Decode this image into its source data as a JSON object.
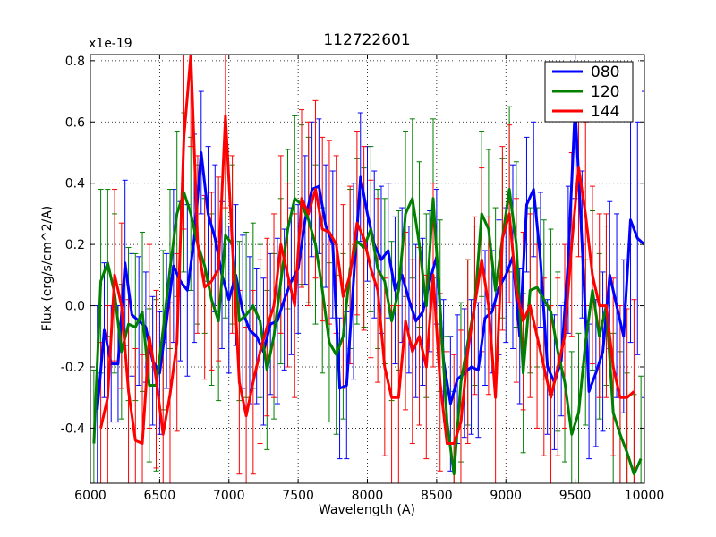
{
  "chart_data": {
    "type": "line",
    "title": "112722601",
    "xlabel": "Wavelength (A)",
    "ylabel": "Flux (erg/s/cm^2/A)",
    "offset_label": "x1e-19",
    "xlim": [
      6000,
      10000
    ],
    "ylim": [
      -0.58,
      0.82
    ],
    "xticks": [
      6000,
      6500,
      7000,
      7500,
      8000,
      8500,
      9000,
      9500,
      10000
    ],
    "yticks": [
      -0.4,
      -0.2,
      0.0,
      0.2,
      0.4,
      0.6,
      0.8
    ],
    "ytick_labels": [
      "-0.4",
      "-0.2",
      "0.0",
      "0.2",
      "0.4",
      "0.6",
      "0.8"
    ],
    "grid": true,
    "legend_position": "top-right",
    "series": [
      {
        "name": "080",
        "color": "#0000ff",
        "x": [
          6050,
          6100,
          6150,
          6200,
          6250,
          6300,
          6350,
          6400,
          6450,
          6500,
          6550,
          6600,
          6650,
          6700,
          6750,
          6800,
          6850,
          6900,
          6950,
          7000,
          7050,
          7100,
          7150,
          7200,
          7250,
          7300,
          7350,
          7400,
          7450,
          7500,
          7550,
          7600,
          7650,
          7700,
          7750,
          7800,
          7850,
          7900,
          7950,
          8000,
          8050,
          8100,
          8150,
          8200,
          8250,
          8300,
          8350,
          8400,
          8450,
          8500,
          8550,
          8600,
          8650,
          8700,
          8750,
          8800,
          8850,
          8900,
          8950,
          9000,
          9050,
          9100,
          9150,
          9200,
          9250,
          9300,
          9350,
          9400,
          9450,
          9500,
          9550,
          9600,
          9650,
          9700,
          9750,
          9800,
          9850,
          9900,
          9950,
          10000
        ],
        "values": [
          -0.34,
          -0.08,
          -0.19,
          -0.19,
          0.14,
          -0.03,
          -0.05,
          -0.07,
          -0.18,
          -0.22,
          -0.05,
          0.13,
          0.08,
          0.05,
          0.22,
          0.5,
          0.3,
          0.22,
          0.1,
          0.02,
          0.1,
          -0.02,
          -0.08,
          -0.1,
          -0.15,
          -0.06,
          -0.05,
          0.02,
          0.08,
          0.12,
          0.28,
          0.38,
          0.39,
          0.26,
          0.2,
          -0.27,
          -0.26,
          0.08,
          0.42,
          0.3,
          0.2,
          0.15,
          0.18,
          0.05,
          0.1,
          0.02,
          -0.05,
          -0.02,
          0.08,
          0.16,
          -0.18,
          -0.32,
          -0.24,
          -0.22,
          -0.2,
          -0.21,
          -0.04,
          -0.02,
          0.06,
          0.1,
          0.16,
          -0.1,
          0.33,
          0.38,
          0.15,
          -0.2,
          -0.25,
          -0.18,
          0.15,
          0.65,
          0.2,
          -0.28,
          -0.22,
          -0.15,
          0.1,
          0.0,
          -0.1,
          0.28,
          0.22,
          0.2
        ],
        "errors": [
          0.34,
          0.22,
          0.19,
          0.19,
          0.27,
          0.2,
          0.21,
          0.18,
          0.21,
          0.2,
          0.22,
          0.25,
          0.26,
          0.28,
          0.34,
          0.2,
          0.22,
          0.24,
          0.24,
          0.24,
          0.23,
          0.25,
          0.24,
          0.22,
          0.24,
          0.23,
          0.27,
          0.23,
          0.24,
          0.21,
          0.21,
          0.22,
          0.22,
          0.2,
          0.24,
          0.23,
          0.24,
          0.32,
          0.21,
          0.22,
          0.24,
          0.24,
          0.22,
          0.24,
          0.22,
          0.24,
          0.25,
          0.24,
          0.23,
          0.22,
          0.2,
          0.22,
          0.21,
          0.21,
          0.22,
          0.22,
          0.22,
          0.2,
          0.22,
          0.22,
          0.3,
          0.22,
          0.22,
          0.22,
          0.22,
          0.22,
          0.22,
          0.18,
          0.24,
          0.3,
          0.24,
          0.22,
          0.24,
          0.26,
          0.24,
          0.3,
          0.25,
          0.4,
          0.38,
          0.5
        ]
      },
      {
        "name": "120",
        "color": "#007f00",
        "x": [
          6025,
          6075,
          6125,
          6175,
          6225,
          6275,
          6325,
          6375,
          6425,
          6475,
          6525,
          6575,
          6625,
          6675,
          6725,
          6775,
          6825,
          6875,
          6925,
          6975,
          7025,
          7075,
          7125,
          7175,
          7225,
          7275,
          7325,
          7375,
          7425,
          7475,
          7525,
          7575,
          7625,
          7675,
          7725,
          7775,
          7825,
          7875,
          7925,
          7975,
          8025,
          8075,
          8125,
          8175,
          8225,
          8275,
          8325,
          8375,
          8425,
          8475,
          8525,
          8575,
          8625,
          8675,
          8725,
          8775,
          8825,
          8875,
          8925,
          8975,
          9025,
          9075,
          9125,
          9175,
          9225,
          9275,
          9325,
          9375,
          9425,
          9475,
          9525,
          9575,
          9625,
          9675,
          9725,
          9775,
          9825,
          9875,
          9925,
          9975
        ],
        "values": [
          -0.45,
          0.08,
          0.14,
          0.04,
          -0.15,
          -0.06,
          -0.07,
          -0.02,
          -0.26,
          -0.26,
          -0.08,
          0.12,
          0.3,
          0.37,
          0.3,
          0.2,
          0.13,
          0.02,
          -0.05,
          0.23,
          0.2,
          -0.05,
          -0.03,
          0.0,
          -0.05,
          -0.21,
          -0.1,
          0.08,
          0.25,
          0.35,
          0.33,
          0.28,
          0.2,
          0.05,
          -0.12,
          -0.16,
          -0.1,
          0.12,
          0.21,
          0.19,
          0.25,
          0.12,
          0.08,
          -0.05,
          0.05,
          0.3,
          0.35,
          0.2,
          0.0,
          0.35,
          0.0,
          -0.38,
          -0.55,
          -0.25,
          -0.12,
          0.0,
          0.3,
          0.25,
          0.05,
          0.22,
          0.38,
          0.2,
          -0.22,
          0.05,
          0.06,
          0.02,
          -0.02,
          -0.15,
          -0.25,
          -0.42,
          -0.35,
          -0.12,
          0.05,
          -0.1,
          0.0,
          -0.35,
          -0.42,
          -0.48,
          -0.55,
          -0.5
        ],
        "errors": [
          0.24,
          0.3,
          0.24,
          0.26,
          0.22,
          0.25,
          0.24,
          0.26,
          0.25,
          0.28,
          0.26,
          0.26,
          0.27,
          0.26,
          0.25,
          0.26,
          0.22,
          0.28,
          0.26,
          0.27,
          0.26,
          0.26,
          0.27,
          0.27,
          0.25,
          0.26,
          0.27,
          0.27,
          0.26,
          0.27,
          0.26,
          0.27,
          0.26,
          0.27,
          0.26,
          0.26,
          0.27,
          0.26,
          0.27,
          0.26,
          0.27,
          0.26,
          0.27,
          0.26,
          0.26,
          0.27,
          0.26,
          0.27,
          0.3,
          0.26,
          0.28,
          0.28,
          0.27,
          0.26,
          0.27,
          0.26,
          0.27,
          0.26,
          0.27,
          0.26,
          0.27,
          0.27,
          0.26,
          0.27,
          0.26,
          0.26,
          0.27,
          0.26,
          0.26,
          0.27,
          0.26,
          0.27,
          0.26,
          0.27,
          0.26,
          0.26,
          0.27,
          0.26,
          0.26,
          0.27
        ]
      },
      {
        "name": "144",
        "color": "#ff0000",
        "x": [
          6075,
          6125,
          6175,
          6225,
          6275,
          6325,
          6375,
          6425,
          6475,
          6525,
          6575,
          6625,
          6675,
          6725,
          6775,
          6825,
          6875,
          6925,
          6975,
          7025,
          7075,
          7125,
          7175,
          7225,
          7275,
          7325,
          7375,
          7425,
          7475,
          7525,
          7575,
          7625,
          7675,
          7725,
          7775,
          7825,
          7875,
          7925,
          7975,
          8025,
          8075,
          8125,
          8175,
          8225,
          8275,
          8325,
          8375,
          8425,
          8475,
          8525,
          8575,
          8625,
          8675,
          8725,
          8775,
          8825,
          8875,
          8925,
          8975,
          9025,
          9075,
          9125,
          9175,
          9225,
          9275,
          9325,
          9375,
          9425,
          9475,
          9525,
          9575,
          9625,
          9675,
          9725,
          9775,
          9825,
          9875,
          9925
        ],
        "values": [
          -0.4,
          -0.3,
          0.1,
          0.0,
          -0.28,
          -0.44,
          -0.45,
          -0.1,
          -0.24,
          -0.42,
          -0.29,
          -0.12,
          0.55,
          0.82,
          0.2,
          0.06,
          0.08,
          0.12,
          0.62,
          0.2,
          -0.25,
          -0.36,
          -0.25,
          -0.15,
          -0.07,
          0.0,
          0.2,
          0.1,
          0.0,
          0.35,
          0.3,
          0.38,
          0.25,
          0.24,
          0.2,
          0.03,
          0.1,
          0.27,
          0.22,
          0.12,
          0.05,
          -0.2,
          -0.3,
          -0.3,
          -0.05,
          -0.15,
          -0.1,
          -0.2,
          0.1,
          -0.25,
          -0.45,
          -0.45,
          -0.38,
          -0.15,
          0.0,
          0.15,
          0.0,
          -0.3,
          0.22,
          0.3,
          0.05,
          -0.05,
          0.0,
          -0.1,
          -0.2,
          -0.3,
          -0.2,
          -0.1,
          0.2,
          0.45,
          0.3,
          0.1,
          0.0,
          0.0,
          -0.2,
          -0.3,
          -0.3,
          -0.28
        ],
        "errors": [
          0.28,
          0.3,
          0.28,
          0.27,
          0.3,
          0.3,
          0.29,
          0.3,
          0.29,
          0.3,
          0.3,
          0.29,
          0.3,
          0.3,
          0.29,
          0.3,
          0.29,
          0.3,
          0.3,
          0.29,
          0.3,
          0.29,
          0.3,
          0.3,
          0.29,
          0.3,
          0.29,
          0.3,
          0.3,
          0.29,
          0.3,
          0.29,
          0.3,
          0.3,
          0.29,
          0.3,
          0.29,
          0.3,
          0.3,
          0.29,
          0.3,
          0.29,
          0.3,
          0.3,
          0.29,
          0.3,
          0.29,
          0.3,
          0.3,
          0.29,
          0.3,
          0.29,
          0.3,
          0.3,
          0.29,
          0.3,
          0.29,
          0.3,
          0.3,
          0.29,
          0.3,
          0.29,
          0.3,
          0.3,
          0.29,
          0.3,
          0.29,
          0.3,
          0.3,
          0.29,
          0.3,
          0.29,
          0.3,
          0.3,
          0.29,
          0.3,
          0.29,
          0.3
        ]
      }
    ]
  }
}
